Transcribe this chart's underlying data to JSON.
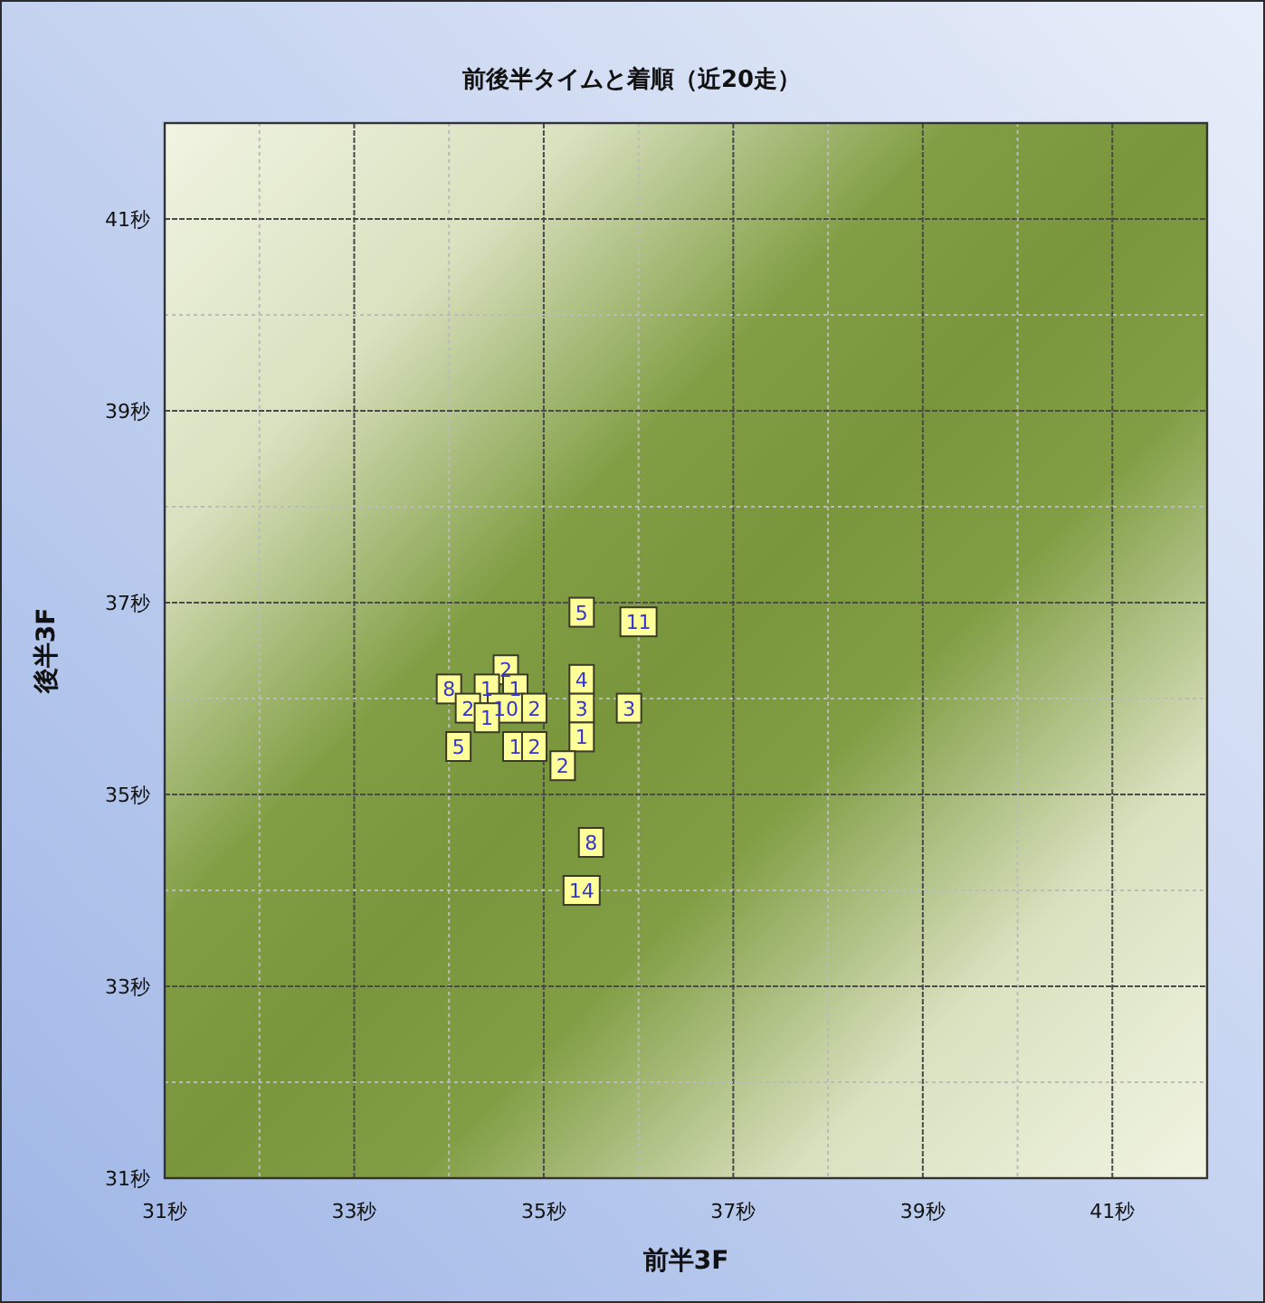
{
  "chart_data": {
    "type": "scatter",
    "title": "前後半タイムと着順（近20走）",
    "xlabel": "前半3F",
    "ylabel": "後半3F",
    "x": [
      35.4,
      36.0,
      34.6,
      35.4,
      34.0,
      34.4,
      34.7,
      34.2,
      34.6,
      34.9,
      35.4,
      35.9,
      34.4,
      35.4,
      34.1,
      34.7,
      34.9,
      35.2,
      35.5,
      35.4
    ],
    "values": [
      36.9,
      36.8,
      36.3,
      36.2,
      36.1,
      36.1,
      36.1,
      35.9,
      35.9,
      35.9,
      35.9,
      35.9,
      35.8,
      35.6,
      35.5,
      35.5,
      35.5,
      35.3,
      34.5,
      34.0
    ],
    "annotations": [
      {
        "text": "5",
        "x": 35.4,
        "y": 36.9
      },
      {
        "text": "11",
        "x": 36.0,
        "y": 36.8
      },
      {
        "text": "2",
        "x": 34.6,
        "y": 36.3
      },
      {
        "text": "4",
        "x": 35.4,
        "y": 36.2
      },
      {
        "text": "8",
        "x": 34.0,
        "y": 36.1
      },
      {
        "text": "1",
        "x": 34.4,
        "y": 36.1
      },
      {
        "text": "1",
        "x": 34.7,
        "y": 36.1
      },
      {
        "text": "2",
        "x": 34.2,
        "y": 35.9
      },
      {
        "text": "10",
        "x": 34.6,
        "y": 35.9
      },
      {
        "text": "2",
        "x": 34.9,
        "y": 35.9
      },
      {
        "text": "3",
        "x": 35.4,
        "y": 35.9
      },
      {
        "text": "3",
        "x": 35.9,
        "y": 35.9
      },
      {
        "text": "1",
        "x": 34.4,
        "y": 35.8
      },
      {
        "text": "1",
        "x": 35.4,
        "y": 35.6
      },
      {
        "text": "5",
        "x": 34.1,
        "y": 35.5
      },
      {
        "text": "1",
        "x": 34.7,
        "y": 35.5
      },
      {
        "text": "2",
        "x": 34.9,
        "y": 35.5
      },
      {
        "text": "2",
        "x": 35.2,
        "y": 35.3
      },
      {
        "text": "8",
        "x": 35.5,
        "y": 34.5
      },
      {
        "text": "14",
        "x": 35.4,
        "y": 34.0
      }
    ],
    "color": "#ffff99",
    "marker": "square",
    "xlim": [
      31,
      42
    ],
    "ylim": [
      31,
      42
    ],
    "xticks": [
      {
        "value": 31,
        "label": "31秒"
      },
      {
        "value": 32,
        "label": null
      },
      {
        "value": 33,
        "label": "33秒"
      },
      {
        "value": 34,
        "label": null
      },
      {
        "value": 35,
        "label": "35秒"
      },
      {
        "value": 36,
        "label": null
      },
      {
        "value": 37,
        "label": "37秒"
      },
      {
        "value": 38,
        "label": null
      },
      {
        "value": 39,
        "label": "39秒"
      },
      {
        "value": 40,
        "label": null
      },
      {
        "value": 41,
        "label": "41秒"
      },
      {
        "value": 42,
        "label": null
      }
    ],
    "yticks": [
      {
        "value": 31,
        "label": "31秒"
      },
      {
        "value": 32,
        "label": null
      },
      {
        "value": 33,
        "label": "33秒"
      },
      {
        "value": 34,
        "label": null
      },
      {
        "value": 35,
        "label": "35秒"
      },
      {
        "value": 36,
        "label": null
      },
      {
        "value": 37,
        "label": "37秒"
      },
      {
        "value": 38,
        "label": null
      },
      {
        "value": 39,
        "label": "39秒"
      },
      {
        "value": 40,
        "label": null
      },
      {
        "value": 41,
        "label": "41秒"
      },
      {
        "value": 42,
        "label": null
      }
    ],
    "grid": true
  }
}
